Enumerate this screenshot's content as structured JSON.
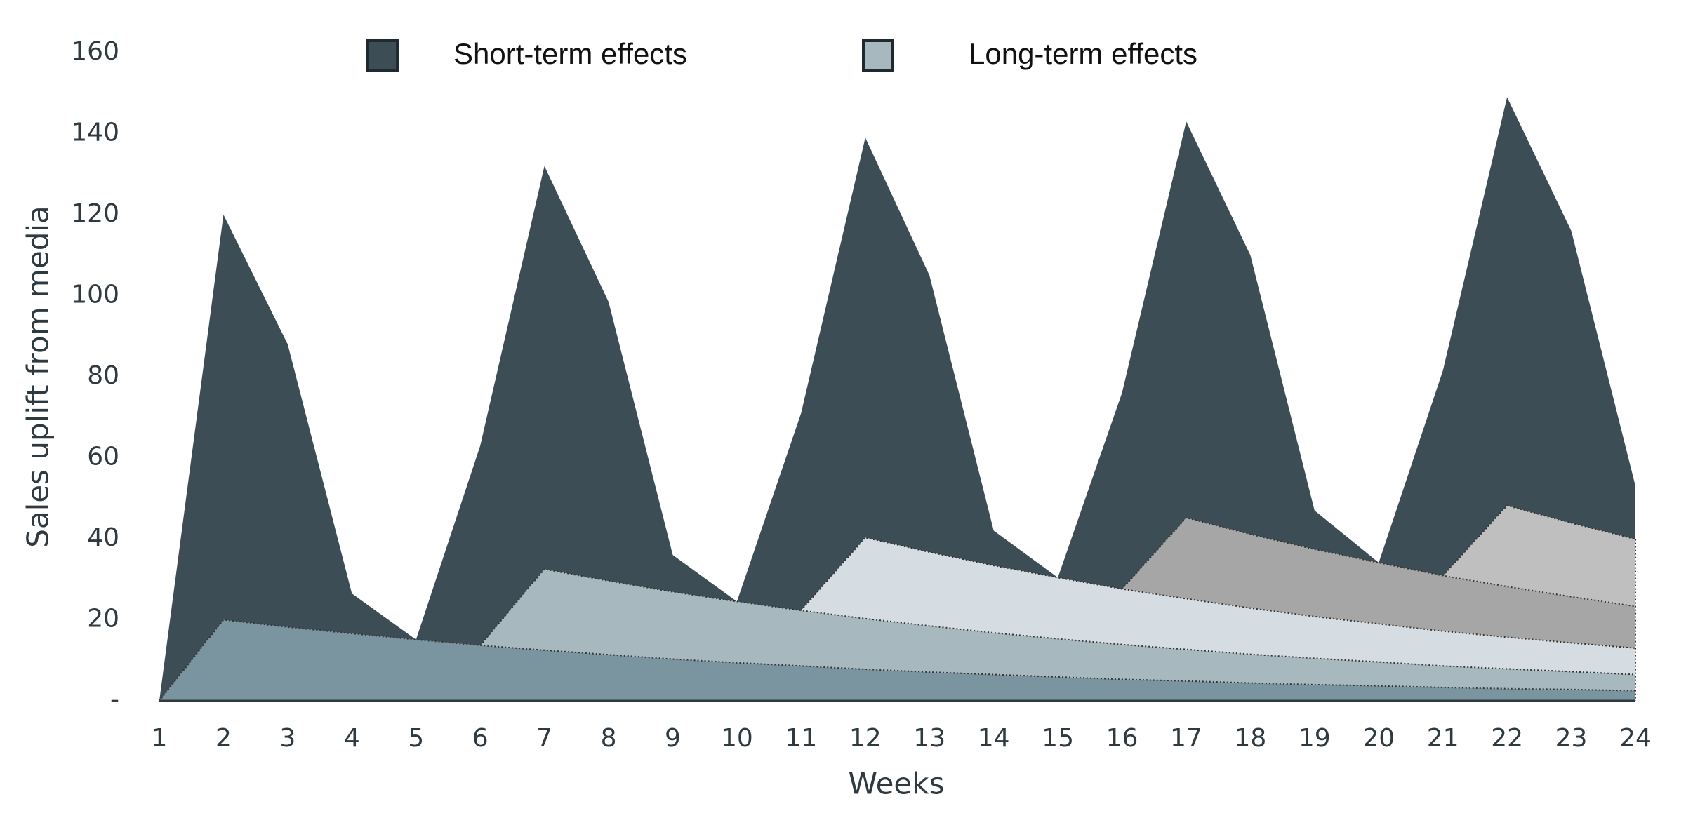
{
  "chart_data": {
    "type": "stacked_area",
    "y_label": "Sales uplift from media",
    "x_label": "Weeks",
    "x": [
      1,
      2,
      3,
      4,
      5,
      6,
      7,
      8,
      9,
      10,
      11,
      12,
      13,
      14,
      15,
      16,
      17,
      18,
      19,
      20,
      21,
      22,
      23,
      24
    ],
    "xlim": [
      1,
      24
    ],
    "ylim": [
      0,
      160
    ],
    "yticks": [
      {
        "value": 0,
        "label": "-"
      },
      20,
      40,
      60,
      80,
      100,
      120,
      140,
      160
    ],
    "legend": [
      {
        "label": "Short-term effects",
        "color": "#3d4d56"
      },
      {
        "label": "Long-term effects",
        "color": "#a7b8bf"
      }
    ],
    "series": [
      {
        "color": "#7b95a0",
        "values": [
          0,
          20,
          18.2,
          16.6,
          15.1,
          13.7,
          12.5,
          11.4,
          10.3,
          9.4,
          8.6,
          7.8,
          7.1,
          6.5,
          5.9,
          5.3,
          4.9,
          4.4,
          4.0,
          3.7,
          3.3,
          3.0,
          2.8,
          2.5
        ]
      },
      {
        "color": "#a7b8bf",
        "values": [
          null,
          null,
          null,
          null,
          null,
          0,
          20,
          18.2,
          16.6,
          15.1,
          13.7,
          12.5,
          11.4,
          10.3,
          9.4,
          8.6,
          7.8,
          7.1,
          6.5,
          5.9,
          5.3,
          4.9,
          4.4,
          4.0
        ]
      },
      {
        "color": "#d5dde2",
        "values": [
          null,
          null,
          null,
          null,
          null,
          null,
          null,
          null,
          null,
          null,
          0,
          20,
          18.2,
          16.6,
          15.1,
          13.7,
          12.5,
          11.4,
          10.3,
          9.4,
          8.6,
          7.8,
          7.1,
          6.5
        ]
      },
      {
        "color": "#a6a6a6",
        "values": [
          null,
          null,
          null,
          null,
          null,
          null,
          null,
          null,
          null,
          null,
          null,
          null,
          null,
          null,
          null,
          0,
          20,
          18.2,
          16.6,
          15.1,
          13.7,
          12.5,
          11.4,
          10.3
        ]
      },
      {
        "color": "#bfbfbf",
        "values": [
          null,
          null,
          null,
          null,
          null,
          null,
          null,
          null,
          null,
          null,
          null,
          null,
          null,
          null,
          null,
          null,
          null,
          null,
          null,
          null,
          0,
          20,
          18.2,
          16.6
        ]
      },
      {
        "color": "#3d4d56",
        "values": [
          0,
          100,
          69.8,
          9.9,
          0,
          49.3,
          99.5,
          68.9,
          9.1,
          0,
          48.7,
          98.7,
          68.3,
          8.6,
          0,
          48.4,
          97.8,
          68.9,
          9.6,
          0,
          50.6,
          100.8,
          72.1,
          13.1
        ]
      }
    ]
  }
}
